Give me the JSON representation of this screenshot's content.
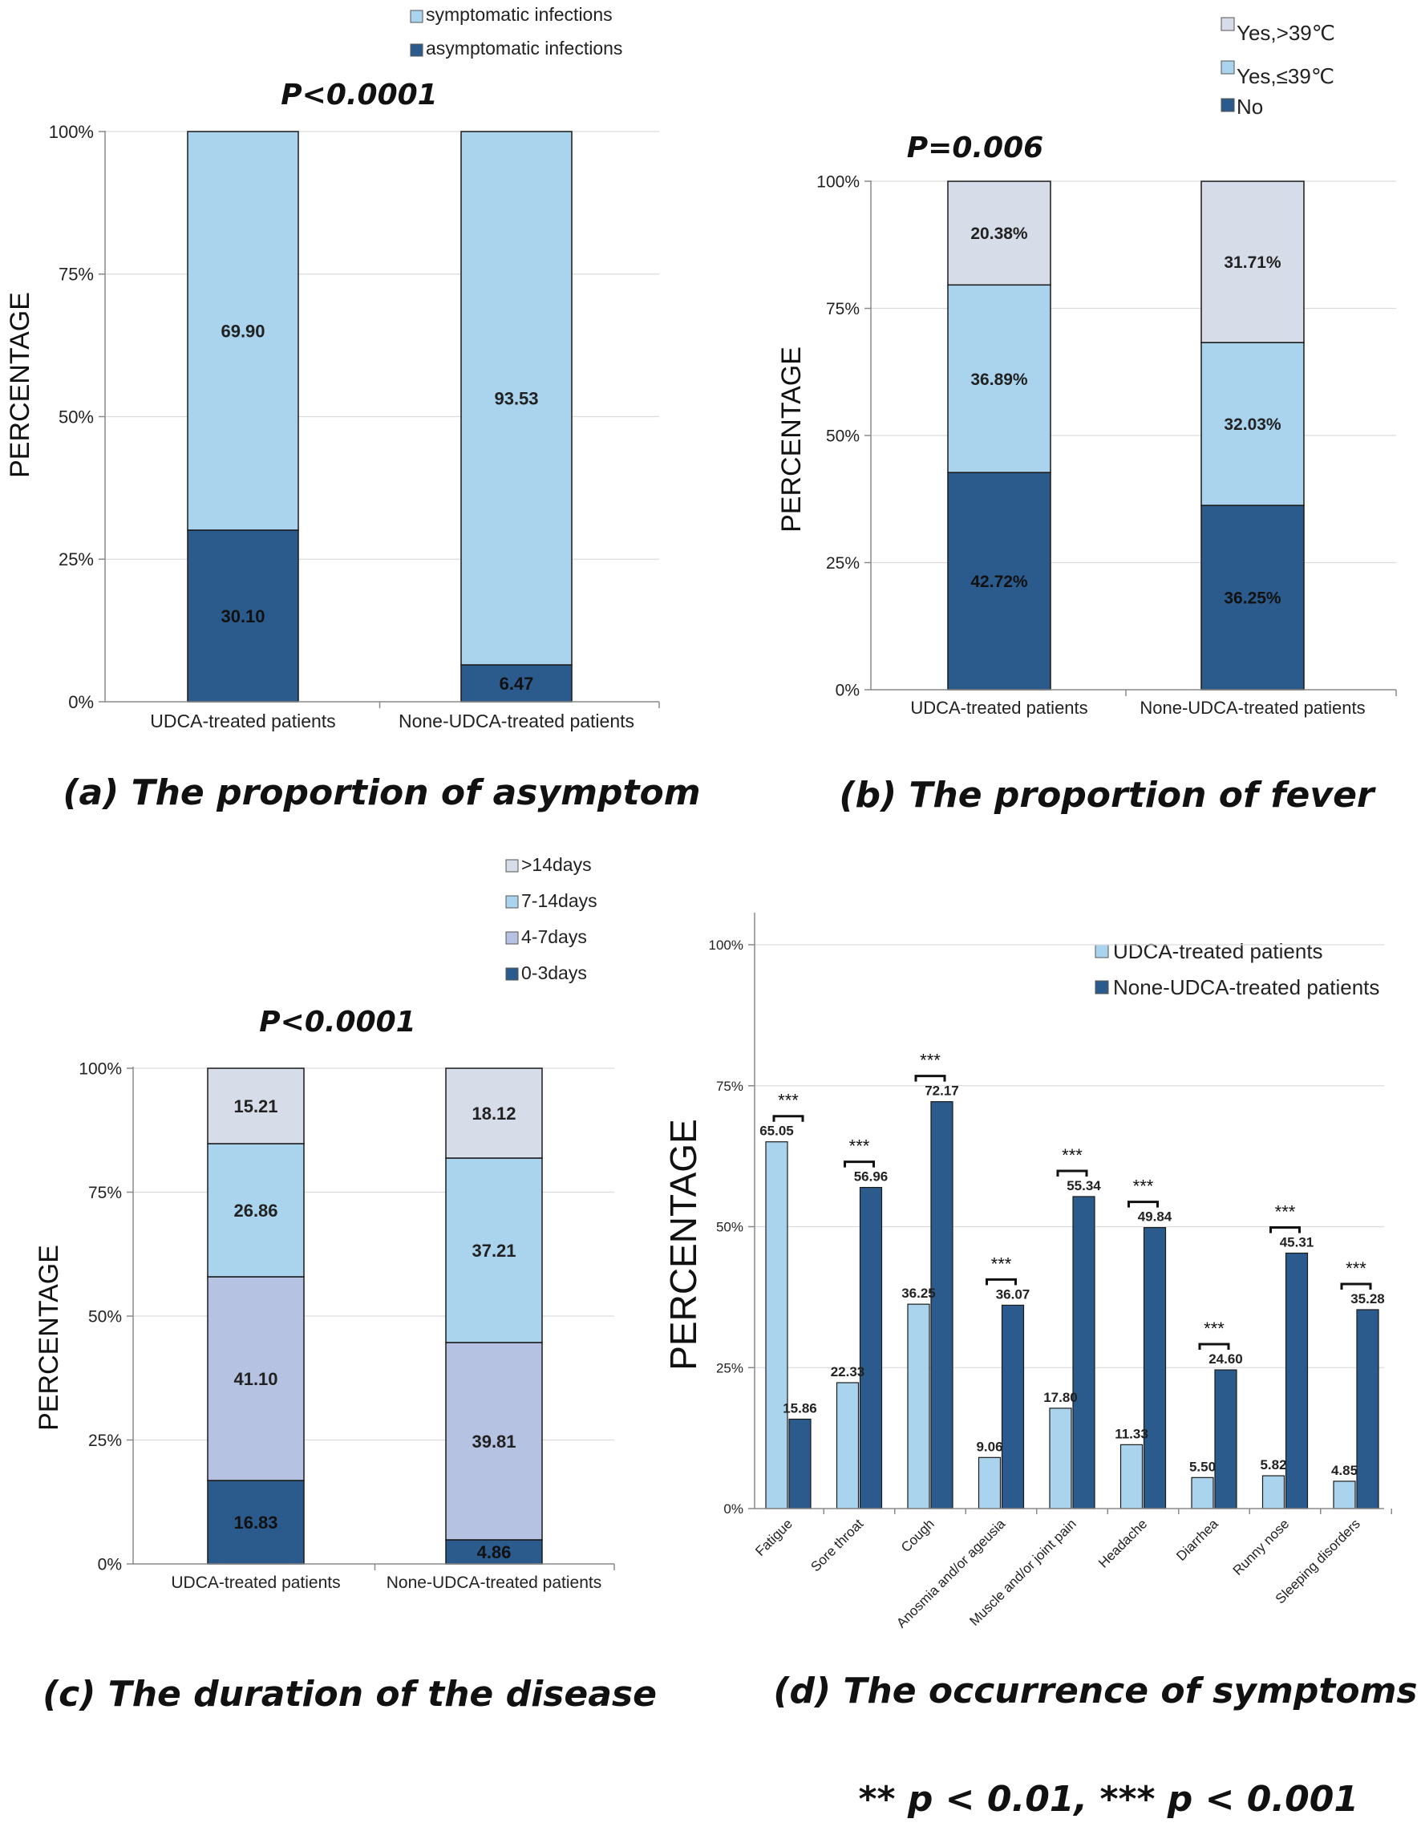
{
  "colors": {
    "dark": "#2b5a8c",
    "light": "#aad4ee",
    "lavender": "#b6c2e2",
    "grey": "#d6dce8",
    "axis": "#8a8a8a",
    "grid": "#dcdcdc"
  },
  "footnote": "** p < 0.01, *** p < 0.001",
  "chart_data": [
    {
      "id": "a",
      "type": "bar",
      "stacked": true,
      "title": "P<0.0001",
      "caption": "(a) The proportion of asymptom",
      "ylabel": "PERCENTAGE",
      "ylim": [
        0,
        100
      ],
      "yticks": [
        "0%",
        "25%",
        "50%",
        "75%",
        "100%"
      ],
      "categories": [
        "UDCA-treated patients",
        "None-UDCA-treated patients"
      ],
      "legend": [
        "symptomatic infections",
        "asymptomatic infections"
      ],
      "series": [
        {
          "name": "asymptomatic infections",
          "color": "dark",
          "values": [
            30.1,
            6.47
          ],
          "labels": [
            "30.10",
            "6.47"
          ]
        },
        {
          "name": "symptomatic infections",
          "color": "light",
          "values": [
            69.9,
            93.53
          ],
          "labels": [
            "69.90",
            "93.53"
          ]
        }
      ]
    },
    {
      "id": "b",
      "type": "bar",
      "stacked": true,
      "title": "P=0.006",
      "caption": "(b) The proportion of fever",
      "ylabel": "PERCENTAGE",
      "ylim": [
        0,
        100
      ],
      "yticks": [
        "0%",
        "25%",
        "50%",
        "75%",
        "100%"
      ],
      "categories": [
        "UDCA-treated patients",
        "None-UDCA-treated patients"
      ],
      "legend": [
        "Yes,>39℃",
        "Yes,≤39℃",
        "No"
      ],
      "series": [
        {
          "name": "No",
          "color": "dark",
          "values": [
            42.72,
            36.25
          ],
          "labels": [
            "42.72%",
            "36.25%"
          ]
        },
        {
          "name": "Yes,≤39℃",
          "color": "light",
          "values": [
            36.89,
            32.03
          ],
          "labels": [
            "36.89%",
            "32.03%"
          ]
        },
        {
          "name": "Yes,>39℃",
          "color": "grey",
          "values": [
            20.38,
            31.71
          ],
          "labels": [
            "20.38%",
            "31.71%"
          ]
        }
      ]
    },
    {
      "id": "c",
      "type": "bar",
      "stacked": true,
      "title": "P<0.0001",
      "caption": "(c) The duration of the disease",
      "ylabel": "PERCENTAGE",
      "ylim": [
        0,
        100
      ],
      "yticks": [
        "0%",
        "25%",
        "50%",
        "75%",
        "100%"
      ],
      "categories": [
        "UDCA-treated patients",
        "None-UDCA-treated patients"
      ],
      "legend": [
        ">14days",
        "7-14days",
        "4-7days",
        "0-3days"
      ],
      "series": [
        {
          "name": "0-3days",
          "color": "dark",
          "values": [
            16.83,
            4.86
          ],
          "labels": [
            "16.83",
            "4.86"
          ]
        },
        {
          "name": "4-7days",
          "color": "lavender",
          "values": [
            41.1,
            39.81
          ],
          "labels": [
            "41.10",
            "39.81"
          ]
        },
        {
          "name": "7-14days",
          "color": "light",
          "values": [
            26.86,
            37.21
          ],
          "labels": [
            "26.86",
            "37.21"
          ]
        },
        {
          "name": ">14days",
          "color": "grey",
          "values": [
            15.21,
            18.12
          ],
          "labels": [
            "15.21",
            "18.12"
          ]
        }
      ]
    },
    {
      "id": "d",
      "type": "bar",
      "stacked": false,
      "caption": "(d) The occurrence of symptoms",
      "ylabel": "PERCENTAGE",
      "ylim": [
        0,
        100
      ],
      "yticks": [
        "0%",
        "25%",
        "50%",
        "75%",
        "100%"
      ],
      "categories": [
        "Fatigue",
        "Sore throat",
        "Cough",
        "Anosmia and/or ageusia",
        "Muscle and/or joint pain",
        "Headache",
        "Diarrhea",
        "Runny nose",
        "Sleeping disorders"
      ],
      "legend": [
        "UDCA-treated patients",
        "None-UDCA-treated patients"
      ],
      "significance": "***",
      "series": [
        {
          "name": "UDCA-treated patients",
          "color": "light",
          "values": [
            65.05,
            22.33,
            36.25,
            9.06,
            17.8,
            11.33,
            5.5,
            5.82,
            4.85
          ],
          "labels": [
            "65.05",
            "22.33",
            "36.25",
            "9.06",
            "17.80",
            "11.33",
            "5.50",
            "5.82",
            "4.85"
          ]
        },
        {
          "name": "None-UDCA-treated patients",
          "color": "dark",
          "values": [
            15.86,
            56.96,
            72.17,
            36.07,
            55.34,
            49.84,
            24.6,
            45.31,
            35.28
          ],
          "labels": [
            "15.86",
            "56.96",
            "72.17",
            "36.07",
            "55.34",
            "49.84",
            "24.60",
            "45.31",
            "35.28"
          ]
        }
      ]
    }
  ]
}
